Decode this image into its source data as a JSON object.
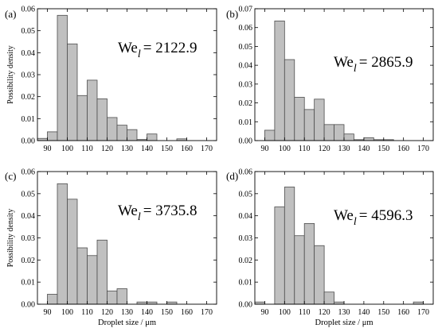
{
  "ylabel": "Possibility density",
  "xlabel": "Droplet size / μm",
  "chart_data": [
    {
      "type": "bar",
      "panel_label": "(a)",
      "annotation": {
        "prefix": "We",
        "subscript": "l",
        "value": "= 2122.9"
      },
      "x_bin_centers": [
        87.5,
        92.5,
        97.5,
        102.5,
        107.5,
        112.5,
        117.5,
        122.5,
        127.5,
        132.5,
        137.5,
        142.5,
        147.5,
        152.5,
        157.5,
        162.5,
        167.5
      ],
      "values": [
        0.001,
        0.004,
        0.057,
        0.044,
        0.0205,
        0.0275,
        0.019,
        0.0105,
        0.007,
        0.005,
        0.0005,
        0.003,
        0.0,
        0.0,
        0.0008,
        0.0,
        0.0
      ],
      "xlim": [
        85,
        175
      ],
      "ylim": [
        0,
        0.06
      ],
      "x_ticks": [
        90,
        100,
        110,
        120,
        130,
        140,
        150,
        160,
        170
      ],
      "y_ticks": [
        0.0,
        0.01,
        0.02,
        0.03,
        0.04,
        0.05,
        0.06
      ],
      "ylabel": "Possibility density",
      "xlabel": ""
    },
    {
      "type": "bar",
      "panel_label": "(b)",
      "annotation": {
        "prefix": "We",
        "subscript": "l",
        "value": "= 2865.9"
      },
      "x_bin_centers": [
        87.5,
        92.5,
        97.5,
        102.5,
        107.5,
        112.5,
        117.5,
        122.5,
        127.5,
        132.5,
        137.5,
        142.5,
        147.5,
        152.5,
        157.5,
        162.5,
        167.5
      ],
      "values": [
        0.0,
        0.0055,
        0.0635,
        0.043,
        0.023,
        0.0165,
        0.022,
        0.0085,
        0.0085,
        0.0035,
        0.0005,
        0.0015,
        0.0005,
        0.0005,
        0.0,
        0.0,
        0.0
      ],
      "xlim": [
        85,
        175
      ],
      "ylim": [
        0,
        0.07
      ],
      "x_ticks": [
        90,
        100,
        110,
        120,
        130,
        140,
        150,
        160,
        170
      ],
      "y_ticks": [
        0.0,
        0.01,
        0.02,
        0.03,
        0.04,
        0.05,
        0.06,
        0.07
      ],
      "ylabel": "",
      "xlabel": ""
    },
    {
      "type": "bar",
      "panel_label": "(c)",
      "annotation": {
        "prefix": "We",
        "subscript": "l",
        "value": "= 3735.8"
      },
      "x_bin_centers": [
        87.5,
        92.5,
        97.5,
        102.5,
        107.5,
        112.5,
        117.5,
        122.5,
        127.5,
        132.5,
        137.5,
        142.5,
        147.5,
        152.5,
        157.5,
        162.5,
        167.5
      ],
      "values": [
        0.0,
        0.0045,
        0.0545,
        0.0475,
        0.0255,
        0.022,
        0.029,
        0.006,
        0.007,
        0.0,
        0.001,
        0.001,
        0.0,
        0.001,
        0.0,
        0.0,
        0.0
      ],
      "xlim": [
        85,
        175
      ],
      "ylim": [
        0,
        0.06
      ],
      "x_ticks": [
        90,
        100,
        110,
        120,
        130,
        140,
        150,
        160,
        170
      ],
      "y_ticks": [
        0.0,
        0.01,
        0.02,
        0.03,
        0.04,
        0.05,
        0.06
      ],
      "ylabel": "Possibility density",
      "xlabel": "Droplet size / μm"
    },
    {
      "type": "bar",
      "panel_label": "(d)",
      "annotation": {
        "prefix": "We",
        "subscript": "l",
        "value": "= 4596.3"
      },
      "x_bin_centers": [
        87.5,
        92.5,
        97.5,
        102.5,
        107.5,
        112.5,
        117.5,
        122.5,
        127.5,
        132.5,
        137.5,
        142.5,
        147.5,
        152.5,
        157.5,
        162.5,
        167.5
      ],
      "values": [
        0.001,
        0.0,
        0.044,
        0.053,
        0.031,
        0.0365,
        0.0265,
        0.0055,
        0.001,
        0.0,
        0.0,
        0.0,
        0.0,
        0.0,
        0.0,
        0.0,
        0.001
      ],
      "xlim": [
        85,
        175
      ],
      "ylim": [
        0,
        0.06
      ],
      "x_ticks": [
        90,
        100,
        110,
        120,
        130,
        140,
        150,
        160,
        170
      ],
      "y_ticks": [
        0.0,
        0.01,
        0.02,
        0.03,
        0.04,
        0.05,
        0.06
      ],
      "ylabel": "",
      "xlabel": "Droplet size / μm"
    }
  ],
  "colors": {
    "bar_fill": "#c0c0c0",
    "bar_stroke": "#4d4d4d",
    "axis": "#000000"
  }
}
